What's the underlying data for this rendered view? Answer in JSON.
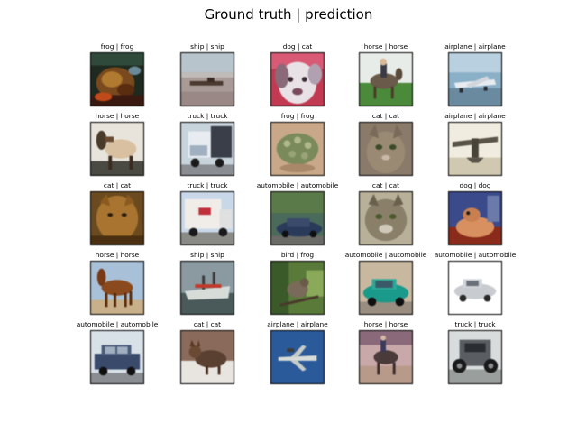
{
  "title": "Ground truth | prediction",
  "samples": [
    {
      "ground_truth": "frog",
      "prediction": "frog",
      "label": "frog | frog",
      "icon": "frog-image"
    },
    {
      "ground_truth": "ship",
      "prediction": "ship",
      "label": "ship | ship",
      "icon": "ship-image"
    },
    {
      "ground_truth": "dog",
      "prediction": "cat",
      "label": "dog | cat",
      "icon": "dog-image"
    },
    {
      "ground_truth": "horse",
      "prediction": "horse",
      "label": "horse | horse",
      "icon": "horse-image"
    },
    {
      "ground_truth": "airplane",
      "prediction": "airplane",
      "label": "airplane | airplane",
      "icon": "airplane-image"
    },
    {
      "ground_truth": "horse",
      "prediction": "horse",
      "label": "horse | horse",
      "icon": "horse-image"
    },
    {
      "ground_truth": "truck",
      "prediction": "truck",
      "label": "truck | truck",
      "icon": "truck-image"
    },
    {
      "ground_truth": "frog",
      "prediction": "frog",
      "label": "frog | frog",
      "icon": "frog-image"
    },
    {
      "ground_truth": "cat",
      "prediction": "cat",
      "label": "cat | cat",
      "icon": "cat-image"
    },
    {
      "ground_truth": "airplane",
      "prediction": "airplane",
      "label": "airplane | airplane",
      "icon": "airplane-image"
    },
    {
      "ground_truth": "cat",
      "prediction": "cat",
      "label": "cat | cat",
      "icon": "cat-image"
    },
    {
      "ground_truth": "truck",
      "prediction": "truck",
      "label": "truck | truck",
      "icon": "truck-image"
    },
    {
      "ground_truth": "automobile",
      "prediction": "automobile",
      "label": "automobile | automobile",
      "icon": "automobile-image"
    },
    {
      "ground_truth": "cat",
      "prediction": "cat",
      "label": "cat | cat",
      "icon": "cat-image"
    },
    {
      "ground_truth": "dog",
      "prediction": "dog",
      "label": "dog | dog",
      "icon": "dog-image"
    },
    {
      "ground_truth": "horse",
      "prediction": "horse",
      "label": "horse | horse",
      "icon": "horse-image"
    },
    {
      "ground_truth": "ship",
      "prediction": "ship",
      "label": "ship | ship",
      "icon": "ship-image"
    },
    {
      "ground_truth": "bird",
      "prediction": "frog",
      "label": "bird | frog",
      "icon": "bird-image"
    },
    {
      "ground_truth": "automobile",
      "prediction": "automobile",
      "label": "automobile | automobile",
      "icon": "automobile-image"
    },
    {
      "ground_truth": "automobile",
      "prediction": "automobile",
      "label": "automobile | automobile",
      "icon": "automobile-image"
    },
    {
      "ground_truth": "automobile",
      "prediction": "automobile",
      "label": "automobile | automobile",
      "icon": "automobile-image"
    },
    {
      "ground_truth": "cat",
      "prediction": "cat",
      "label": "cat | cat",
      "icon": "cat-image"
    },
    {
      "ground_truth": "airplane",
      "prediction": "airplane",
      "label": "airplane | airplane",
      "icon": "airplane-image"
    },
    {
      "ground_truth": "horse",
      "prediction": "horse",
      "label": "horse | horse",
      "icon": "horse-image"
    },
    {
      "ground_truth": "truck",
      "prediction": "truck",
      "label": "truck | truck",
      "icon": "truck-image"
    }
  ]
}
